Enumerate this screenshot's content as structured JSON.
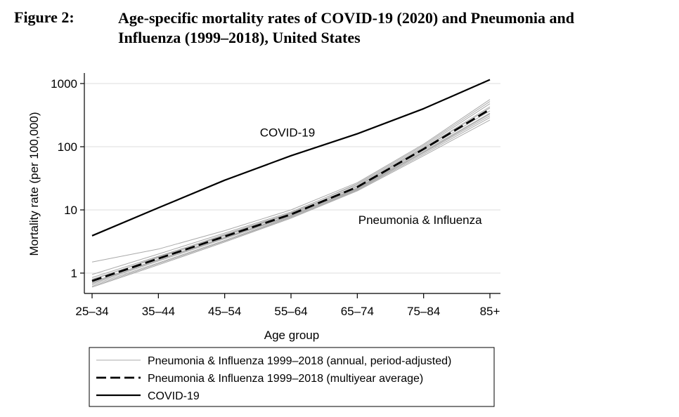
{
  "figure": {
    "label": "Figure 2:",
    "title_line1": "Age-specific mortality rates of COVID-19 (2020) and Pneumonia and",
    "title_line2": "Influenza (1999–2018), United States"
  },
  "chart_data": {
    "type": "line",
    "title": "Age-specific mortality rates of COVID-19 (2020) and Pneumonia and Influenza (1999–2018), United States",
    "xlabel": "Age group",
    "ylabel": "Mortality rate (per 100,000)",
    "yscale": "log",
    "ylim": [
      0.5,
      1200
    ],
    "yticks": [
      1,
      10,
      100,
      1000
    ],
    "ytick_labels": [
      "1",
      "10",
      "100",
      "1000"
    ],
    "grid": true,
    "categories": [
      "25–34",
      "35–44",
      "45–54",
      "55–64",
      "65–74",
      "75–84",
      "85+"
    ],
    "annotations": [
      {
        "text": "COVID-19",
        "x": "55–64",
        "y": 170
      },
      {
        "text": "Pneumonia & Influenza",
        "x": "75–84",
        "y": 7
      }
    ],
    "series": [
      {
        "name": "COVID-19",
        "style": "solid-black",
        "values": [
          3.9,
          10.8,
          29.5,
          72,
          160,
          400,
          1150
        ]
      },
      {
        "name": "Pneumonia & Influenza 1999–2018 (multiyear average)",
        "style": "dashed-black",
        "values": [
          0.75,
          1.7,
          3.8,
          8.5,
          23,
          92,
          390
        ]
      },
      {
        "name": "Pneumonia & Influenza 1999–2018 (annual, period-adjusted)",
        "style": "thin-gray",
        "values": [
          1.5,
          2.4,
          4.7,
          10,
          27,
          110,
          560
        ]
      },
      {
        "style": "thin-gray",
        "values": [
          0.95,
          2.0,
          4.3,
          9.3,
          25,
          100,
          480
        ]
      },
      {
        "style": "thin-gray",
        "values": [
          0.85,
          1.85,
          4.0,
          8.8,
          24,
          96,
          430
        ]
      },
      {
        "style": "thin-gray",
        "values": [
          0.8,
          1.75,
          3.9,
          8.6,
          23.5,
          93,
          410
        ]
      },
      {
        "style": "thin-gray",
        "values": [
          0.72,
          1.65,
          3.7,
          8.3,
          22.5,
          89,
          370
        ]
      },
      {
        "style": "thin-gray",
        "values": [
          0.68,
          1.55,
          3.5,
          8.0,
          22,
          85,
          340
        ]
      },
      {
        "style": "thin-gray",
        "values": [
          0.65,
          1.45,
          3.3,
          7.8,
          21,
          80,
          310
        ]
      },
      {
        "style": "thin-gray",
        "values": [
          0.62,
          1.4,
          3.2,
          7.6,
          20.5,
          76,
          290
        ]
      },
      {
        "style": "thin-gray",
        "values": [
          0.6,
          1.35,
          3.1,
          7.4,
          20,
          72,
          265
        ]
      },
      {
        "style": "thin-gray",
        "values": [
          0.78,
          1.8,
          4.1,
          9.0,
          26,
          105,
          520
        ]
      },
      {
        "style": "thin-gray",
        "values": [
          0.7,
          1.6,
          3.6,
          8.1,
          21.5,
          82,
          330
        ]
      }
    ],
    "legend": {
      "placement": "bottom",
      "entries": [
        {
          "label": "Pneumonia & Influenza 1999–2018 (annual, period-adjusted)",
          "style": "thin-gray"
        },
        {
          "label": "Pneumonia & Influenza 1999–2018 (multiyear average)",
          "style": "dashed-black"
        },
        {
          "label": "COVID-19",
          "style": "solid-black"
        }
      ]
    },
    "colors": {
      "covid": "#000000",
      "average": "#000000",
      "annual": "#aaaaaa",
      "grid": "#dcdcdc"
    }
  }
}
